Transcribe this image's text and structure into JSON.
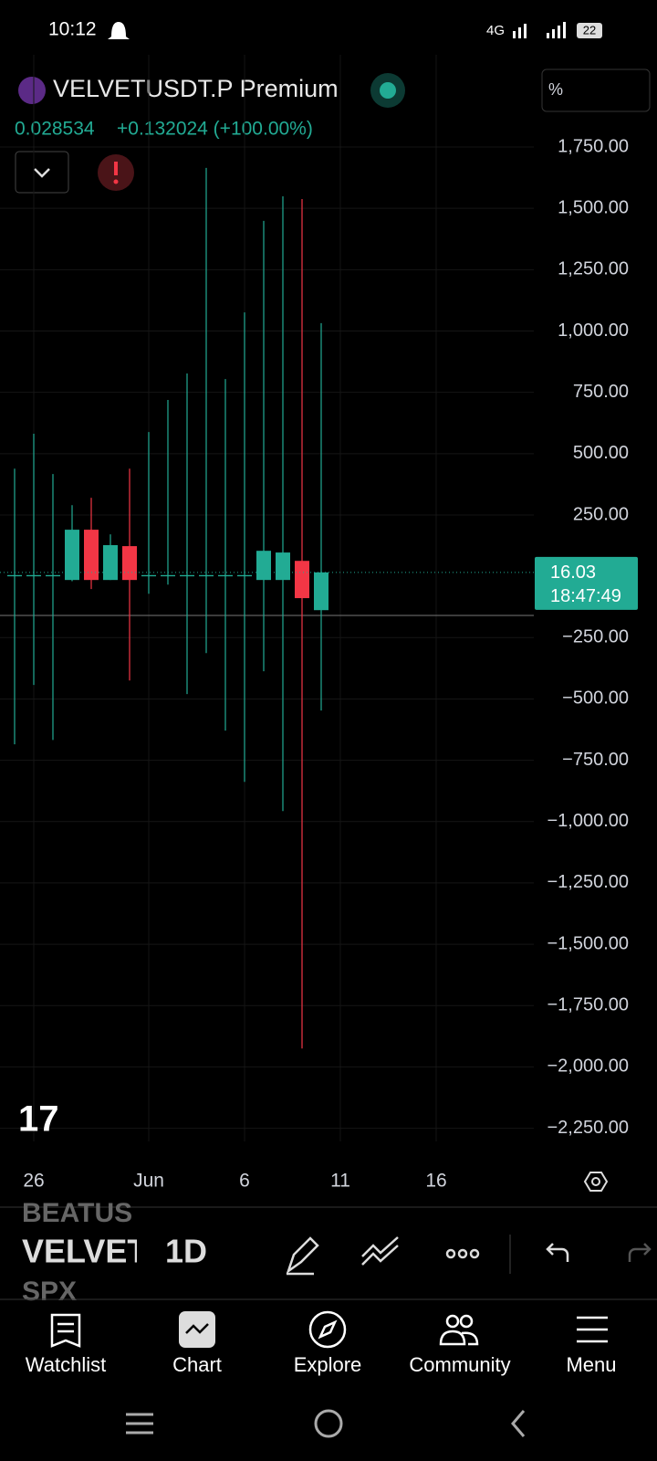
{
  "status_bar": {
    "time": "10:12",
    "network": "4G",
    "battery": "22"
  },
  "symbol": {
    "name": "VELVETUSDT.P Premium",
    "price": "0.028534",
    "change": "+0.132024 (+100.00%)",
    "scale_button": "%"
  },
  "chart_data": {
    "type": "candlestick",
    "categories": [
      null,
      "26",
      null,
      null,
      null,
      null,
      null,
      "Jun",
      null,
      null,
      null,
      null,
      "6",
      null,
      null,
      null,
      null,
      "11",
      null,
      null,
      null,
      null,
      "16"
    ],
    "open": [
      0,
      0,
      0,
      -15,
      190,
      -15,
      123,
      0,
      0,
      0,
      0,
      0,
      0,
      -15,
      -15,
      63,
      -138,
      null,
      null,
      null,
      null,
      null,
      null
    ],
    "high": [
      439,
      581,
      417,
      290,
      320,
      171,
      439,
      588,
      719,
      827,
      1665,
      804,
      1076,
      1449,
      1549,
      1538,
      1032,
      null,
      null,
      null,
      null,
      null,
      null
    ],
    "low": [
      -685,
      -443,
      -667,
      -20,
      -52,
      -15,
      -425,
      -71,
      -34,
      -480,
      -313,
      -629,
      -838,
      -387,
      -957,
      -1925,
      -547,
      null,
      null,
      null,
      null,
      null,
      null
    ],
    "close": [
      5,
      5,
      5,
      190,
      -15,
      127,
      -15,
      5,
      5,
      5,
      5,
      5,
      5,
      104,
      97,
      -89,
      16.03,
      null,
      null,
      null,
      null,
      null,
      null
    ],
    "up_color": "#22ab94",
    "down_color": "#f23645",
    "ylim": [
      -2300,
      2100
    ],
    "yticks": [
      {
        "value": 1750,
        "label": "1,750.00"
      },
      {
        "value": 1500,
        "label": "1,500.00"
      },
      {
        "value": 1250,
        "label": "1,250.00"
      },
      {
        "value": 1000,
        "label": "1,000.00"
      },
      {
        "value": 750,
        "label": "750.00"
      },
      {
        "value": 500,
        "label": "500.00"
      },
      {
        "value": 250,
        "label": "250.00"
      },
      {
        "value": -250,
        "label": "−250.00"
      },
      {
        "value": -500,
        "label": "−500.00"
      },
      {
        "value": -750,
        "label": "−750.00"
      },
      {
        "value": -1000,
        "label": "−1,000.00"
      },
      {
        "value": -1250,
        "label": "−1,250.00"
      },
      {
        "value": -1500,
        "label": "−1,500.00"
      },
      {
        "value": -1750,
        "label": "−1,750.00"
      },
      {
        "value": -2000,
        "label": "−2,000.00"
      },
      {
        "value": -2250,
        "label": "−2,250.00"
      }
    ],
    "grid": true,
    "last_price": 16.03,
    "countdown": "18:47:49"
  },
  "toolbar": {
    "symbols": [
      "BEATUS",
      "VELVET",
      "SPX"
    ],
    "interval": "1D"
  },
  "nav": [
    "Watchlist",
    "Chart",
    "Explore",
    "Community",
    "Menu"
  ]
}
